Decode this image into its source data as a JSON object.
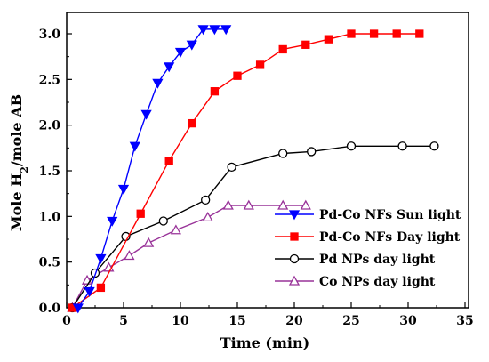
{
  "chart_data": {
    "type": "line",
    "title": "",
    "xlabel": "Time (min)",
    "ylabel_parts": [
      "Mole H",
      "2",
      "/mole AB"
    ],
    "xlim": [
      0,
      35
    ],
    "ylim": [
      0,
      3.2
    ],
    "xticks": [
      0,
      5,
      10,
      15,
      20,
      25,
      30,
      35
    ],
    "yticks": [
      0.0,
      0.5,
      1.0,
      1.5,
      2.0,
      2.5,
      3.0
    ],
    "xtick_labels": [
      "0",
      "5",
      "10",
      "15",
      "20",
      "25",
      "30",
      "35"
    ],
    "ytick_labels": [
      "0.0",
      "0.5",
      "1.0",
      "1.5",
      "2.0",
      "2.5",
      "3.0"
    ],
    "grid": false,
    "legend_position": "lower-right",
    "series": [
      {
        "name": "Pd-Co NFs Sun light",
        "color": "#0000ff",
        "marker": "triangle-down",
        "filled": true,
        "x": [
          1,
          2,
          3,
          4,
          5,
          6,
          7,
          8,
          9,
          10,
          11,
          12,
          13,
          14
        ],
        "y": [
          0.0,
          0.18,
          0.54,
          0.95,
          1.3,
          1.77,
          2.12,
          2.46,
          2.64,
          2.8,
          2.88,
          3.05,
          3.05,
          3.05
        ]
      },
      {
        "name": "Pd-Co NFs Day light",
        "color": "#ff0000",
        "marker": "square",
        "filled": true,
        "x": [
          0.5,
          3,
          6.5,
          9,
          11,
          13,
          15,
          17,
          19,
          21,
          23,
          25,
          27,
          29,
          31
        ],
        "y": [
          0.0,
          0.22,
          1.03,
          1.61,
          2.02,
          2.37,
          2.54,
          2.66,
          2.83,
          2.88,
          2.94,
          3.0,
          3.0,
          3.0,
          3.0
        ]
      },
      {
        "name": "Pd  NPs day light",
        "color": "#000000",
        "marker": "circle",
        "filled": false,
        "x": [
          0.5,
          2.5,
          5.2,
          8.5,
          12.2,
          14.5,
          19,
          21.5,
          25,
          29.5,
          32.3
        ],
        "y": [
          0.0,
          0.38,
          0.78,
          0.95,
          1.18,
          1.54,
          1.69,
          1.71,
          1.77,
          1.77,
          1.77
        ]
      },
      {
        "name": "Co NPs day light",
        "color": "#993399",
        "marker": "triangle-up",
        "filled": false,
        "x": [
          0.5,
          1.8,
          3.7,
          5.5,
          7.2,
          9.6,
          12.4,
          14.2,
          16,
          19,
          21
        ],
        "y": [
          0.0,
          0.3,
          0.44,
          0.57,
          0.71,
          0.85,
          0.99,
          1.12,
          1.12,
          1.12,
          1.12
        ]
      }
    ]
  }
}
